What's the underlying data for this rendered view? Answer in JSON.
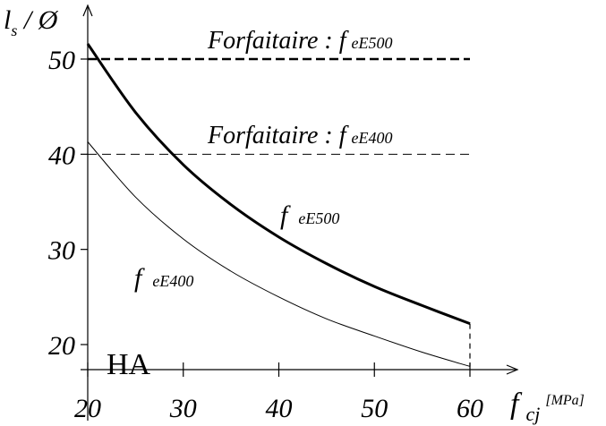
{
  "chart_data": {
    "type": "line",
    "title": "",
    "ylabel": {
      "main": "l",
      "sub": "s",
      "rest": " / Ø"
    },
    "xlabel": {
      "main": "f",
      "sub": "cj",
      "unit": "[MPa]"
    },
    "xlim": [
      20,
      60
    ],
    "ylim": [
      17,
      54
    ],
    "x_ticks": [
      20,
      30,
      40,
      50,
      60
    ],
    "y_ticks": [
      20,
      30,
      40,
      50
    ],
    "grid": false,
    "series": [
      {
        "name": "f eE500",
        "style": "solid-thick",
        "x": [
          20,
          25,
          30,
          35,
          40,
          45,
          50,
          55,
          60
        ],
        "y": [
          51.6,
          44.4,
          38.9,
          34.7,
          31.3,
          28.5,
          26.1,
          24.1,
          22.2
        ]
      },
      {
        "name": "f eE400",
        "style": "solid-thin",
        "x": [
          20,
          25,
          30,
          35,
          40,
          45,
          50,
          55,
          60
        ],
        "y": [
          41.3,
          35.5,
          31.1,
          27.7,
          25.0,
          22.7,
          20.9,
          19.2,
          17.7
        ]
      },
      {
        "name": "Forfaitaire : f eE500",
        "style": "dashed-thick",
        "x": [
          20,
          60
        ],
        "y": [
          50,
          50
        ]
      },
      {
        "name": "Forfaitaire : f eE400",
        "style": "dashed-thin",
        "x": [
          20,
          60
        ],
        "y": [
          40,
          40
        ]
      }
    ],
    "annotations": {
      "forf_e500": {
        "prefix": "Forfaitaire : f",
        "sub": "eE500"
      },
      "forf_e400": {
        "prefix": "Forfaitaire : f",
        "sub": "eE400"
      },
      "curve_e500": {
        "prefix": "f",
        "sub": "eE500"
      },
      "curve_e400": {
        "prefix": "f",
        "sub": "eE400"
      },
      "ha": "HA"
    },
    "end_connector_at_x": 60
  }
}
